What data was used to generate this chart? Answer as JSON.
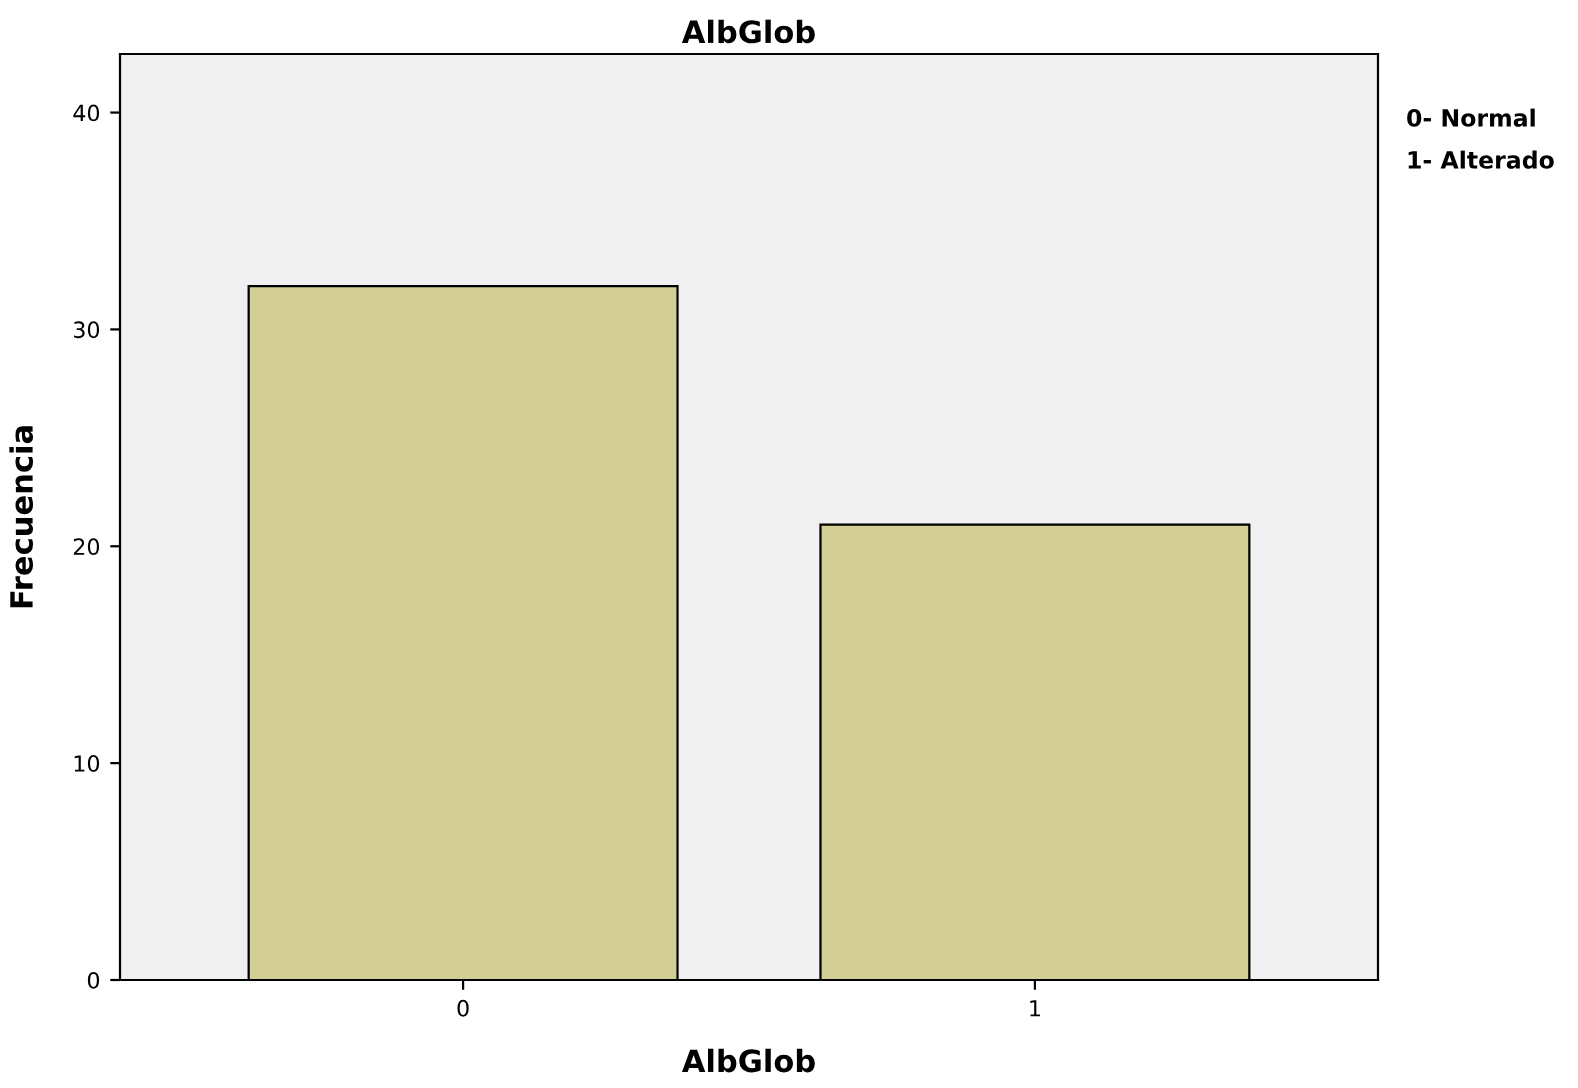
{
  "chart_data": {
    "type": "bar",
    "title": "AlbGlob",
    "xlabel": "AlbGlob",
    "ylabel": "Frecuencia",
    "categories": [
      "0",
      "1"
    ],
    "values": [
      32,
      21
    ],
    "color": "#d3cd96",
    "ylim": [
      0,
      42.7
    ],
    "yticks": [
      0,
      10,
      20,
      30,
      40
    ],
    "grid": false,
    "annotations": [
      "0- Normal",
      "1- Alterado"
    ]
  }
}
